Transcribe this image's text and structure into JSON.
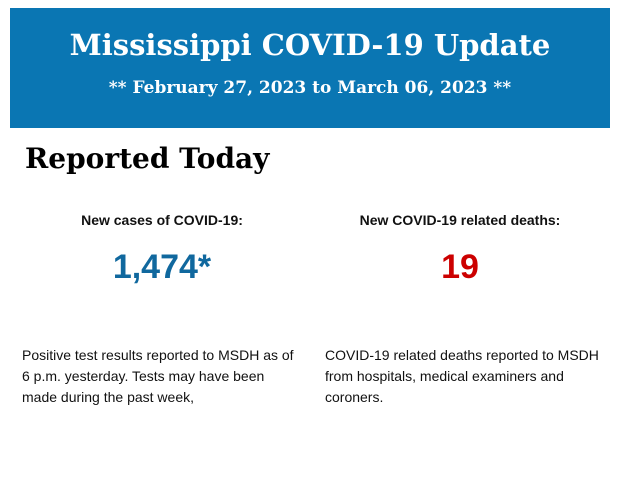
{
  "header": {
    "title": "Mississippi COVID-19 Update",
    "date_range": "** February 27, 2023 to March 06, 2023 **"
  },
  "section_title": "Reported Today",
  "cases": {
    "label": "New cases of COVID-19:",
    "value": "1,474*",
    "color": "#10689e",
    "description": "Positive test results reported to MSDH as of 6 p.m. yesterday. Tests may have been made during the past week,"
  },
  "deaths": {
    "label": "New COVID-19 related deaths:",
    "value": "19",
    "color": "#cc0000",
    "description": "COVID-19 related deaths reported to MSDH from hospitals, medical examiners and coroners."
  }
}
